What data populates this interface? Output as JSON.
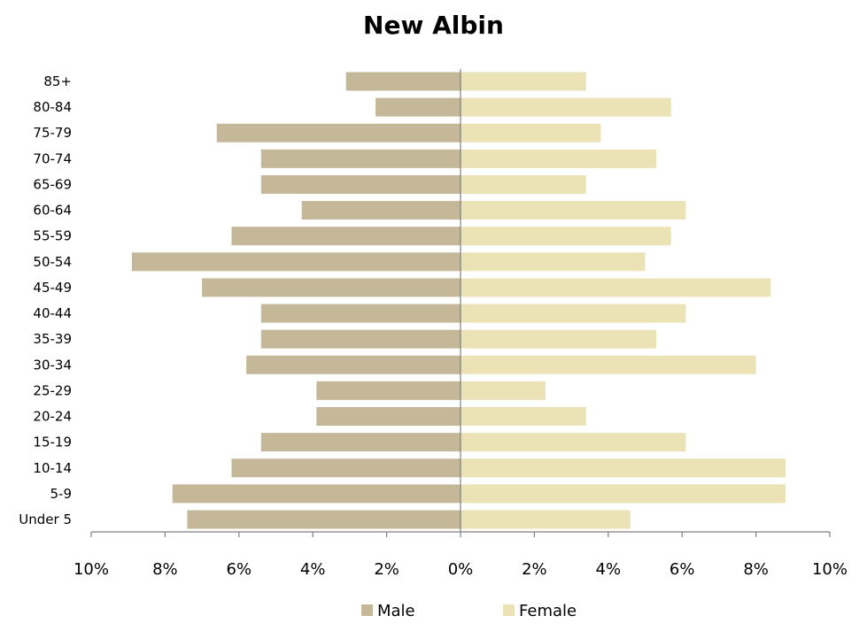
{
  "chart_data": {
    "type": "bar",
    "orientation": "horizontal",
    "title": "New Albin",
    "categories": [
      "Under 5",
      "5-9",
      "10-14",
      "15-19",
      "20-24",
      "25-29",
      "30-34",
      "35-39",
      "40-44",
      "45-49",
      "50-54",
      "55-59",
      "60-64",
      "65-69",
      "70-74",
      "75-79",
      "80-84",
      "85+"
    ],
    "series": [
      {
        "name": "Male",
        "color": "#c4b898",
        "values": [
          7.4,
          7.8,
          6.2,
          5.4,
          3.9,
          3.9,
          5.8,
          5.4,
          5.4,
          7.0,
          8.9,
          6.2,
          4.3,
          5.4,
          5.4,
          6.6,
          2.3,
          3.1
        ]
      },
      {
        "name": "Female",
        "color": "#ebe2b6",
        "values": [
          4.6,
          8.8,
          8.8,
          6.1,
          3.4,
          2.3,
          8.0,
          5.3,
          6.1,
          8.4,
          5.0,
          5.7,
          6.1,
          3.4,
          5.3,
          3.8,
          5.7,
          3.4
        ]
      }
    ],
    "xlim": [
      -10,
      10
    ],
    "x_ticks": [
      -10,
      -8,
      -6,
      -4,
      -2,
      0,
      2,
      4,
      6,
      8,
      10
    ],
    "x_tick_labels": [
      "10%",
      "8%",
      "6%",
      "4%",
      "2%",
      "0%",
      "2%",
      "4%",
      "6%",
      "8%",
      "10%"
    ],
    "grid": false,
    "legend_position": "bottom"
  }
}
